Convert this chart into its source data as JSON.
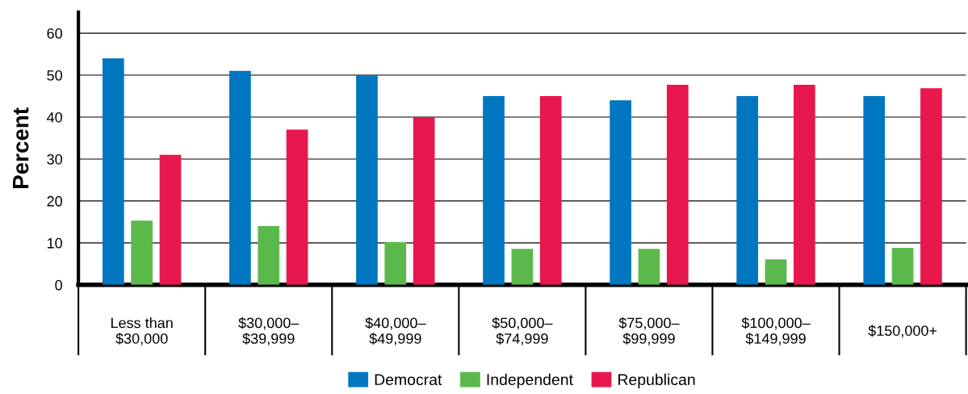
{
  "chart_data": {
    "type": "bar",
    "ylabel": "Percent",
    "categories": [
      "Less than\n$30,000",
      "$30,000–\n$39,999",
      "$40,000–\n$49,999",
      "$50,000–\n$74,999",
      "$75,000–\n$99,999",
      "$100,000–\n$149,999",
      "$150,000+"
    ],
    "series": [
      {
        "name": "Democrat",
        "color": "#0077c0",
        "values": [
          54,
          51,
          50,
          45,
          44,
          45,
          45
        ]
      },
      {
        "name": "Independent",
        "color": "#5bb94c",
        "values": [
          15.3,
          14,
          10.2,
          8.6,
          8.6,
          6.1,
          8.8
        ]
      },
      {
        "name": "Republican",
        "color": "#e8174d",
        "values": [
          31,
          37,
          40,
          45,
          47.7,
          47.7,
          46.9
        ]
      }
    ],
    "ylim": [
      0,
      65
    ],
    "yticks": [
      0,
      10,
      20,
      30,
      40,
      50,
      60
    ],
    "grid": "y",
    "legend": "bottom"
  }
}
